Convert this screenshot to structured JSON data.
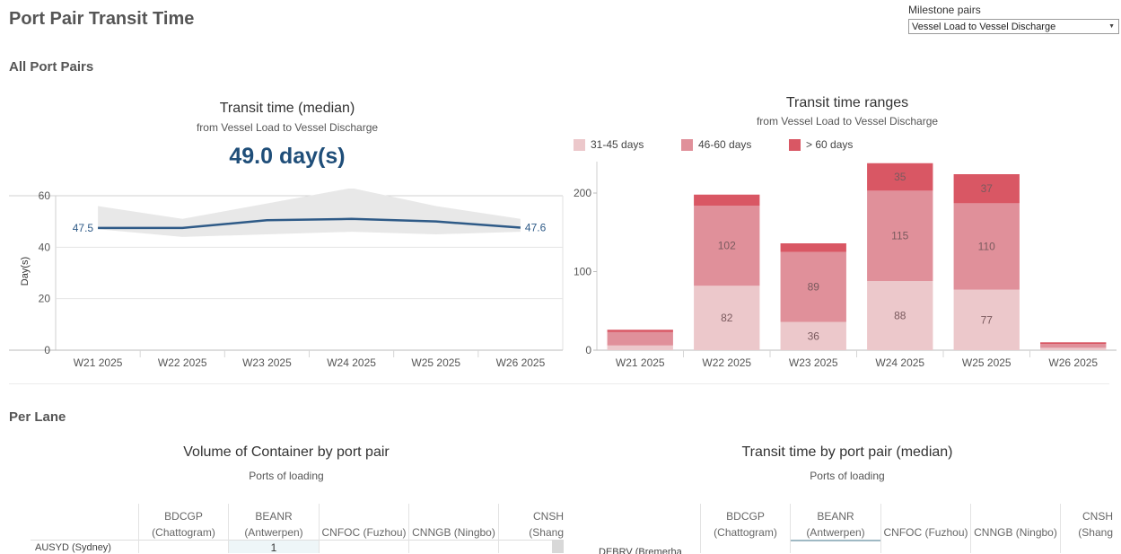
{
  "page": {
    "title": "Port Pair Transit Time",
    "milestone": {
      "label": "Milestone pairs",
      "selected": "Vessel Load to Vessel Discharge"
    }
  },
  "sections": {
    "all_port_pairs": "All Port Pairs",
    "per_lane": "Per Lane"
  },
  "kpi": {
    "title": "Transit time (median)",
    "subtitle": "from Vessel Load to Vessel Discharge",
    "value": "49.0 day(s)"
  },
  "ranges_header": {
    "title": "Transit time ranges",
    "subtitle": "from Vessel Load to Vessel Discharge"
  },
  "chart_data": [
    {
      "type": "line",
      "title": "",
      "xlabel": "",
      "ylabel": "Day(s)",
      "categories": [
        "W21 2025",
        "W22 2025",
        "W23 2025",
        "W24 2025",
        "W25 2025",
        "W26 2025"
      ],
      "series": [
        {
          "values": [
            47.5,
            47.5,
            50.5,
            51.0,
            50.0,
            47.6
          ]
        }
      ],
      "band": {
        "upper": [
          56,
          51,
          57,
          63,
          56,
          51
        ],
        "lower": [
          47,
          44,
          45,
          46,
          45,
          46
        ]
      },
      "point_labels": [
        {
          "index": 0,
          "text": "47.5"
        },
        {
          "index": 5,
          "text": "47.6"
        }
      ],
      "ylim": [
        0,
        60
      ],
      "yticks": [
        0,
        20,
        40,
        60
      ],
      "grid": true,
      "colors": {
        "line": "#2e5a87",
        "band": "#e8e8e8"
      }
    },
    {
      "type": "bar",
      "stacked": true,
      "title": "",
      "categories": [
        "W21 2025",
        "W22 2025",
        "W23 2025",
        "W24 2025",
        "W25 2025",
        "W26 2025"
      ],
      "series": [
        {
          "name": "31-45 days",
          "color": "#ecc8cb",
          "values": [
            6,
            82,
            36,
            88,
            77,
            3
          ]
        },
        {
          "name": "46-60 days",
          "color": "#e0909a",
          "values": [
            17,
            102,
            89,
            115,
            110,
            5
          ]
        },
        {
          "name": "> 60 days",
          "color": "#d95764",
          "values": [
            3,
            14,
            11,
            35,
            37,
            2
          ]
        }
      ],
      "data_labels": [
        {
          "category": "W22 2025",
          "series": "31-45 days",
          "text": "82"
        },
        {
          "category": "W22 2025",
          "series": "46-60 days",
          "text": "102"
        },
        {
          "category": "W23 2025",
          "series": "31-45 days",
          "text": "36"
        },
        {
          "category": "W23 2025",
          "series": "46-60 days",
          "text": "89"
        },
        {
          "category": "W24 2025",
          "series": "31-45 days",
          "text": "88"
        },
        {
          "category": "W24 2025",
          "series": "46-60 days",
          "text": "115"
        },
        {
          "category": "W24 2025",
          "series": "> 60 days",
          "text": "35"
        },
        {
          "category": "W25 2025",
          "series": "31-45 days",
          "text": "77"
        },
        {
          "category": "W25 2025",
          "series": "46-60 days",
          "text": "110"
        },
        {
          "category": "W25 2025",
          "series": "> 60 days",
          "text": "37"
        }
      ],
      "ylim": [
        0,
        240
      ],
      "yticks": [
        0,
        100,
        200
      ],
      "legend": "top-left"
    }
  ],
  "tables": {
    "volume": {
      "title": "Volume of Container by port pair",
      "subtitle": "Ports of loading",
      "columns": [
        {
          "code": "BDCGP",
          "name": "(Chattogram)"
        },
        {
          "code": "BEANR",
          "name": "(Antwerpen)"
        },
        {
          "code": "",
          "name": "CNFOC (Fuzhou)"
        },
        {
          "code": "",
          "name": "CNNGB (Ningbo)"
        },
        {
          "code": "CNSH",
          "name": "(Shang"
        }
      ],
      "rows": [
        {
          "label": "AUSYD (Sydney)",
          "cells": [
            "",
            "1",
            "",
            "",
            ""
          ]
        }
      ]
    },
    "transit": {
      "title": "Transit time by port pair (median)",
      "subtitle": "Ports of loading",
      "columns": [
        {
          "code": "BDCGP",
          "name": "(Chattogram)"
        },
        {
          "code": "BEANR",
          "name": "(Antwerpen)"
        },
        {
          "code": "",
          "name": "CNFOC (Fuzhou)"
        },
        {
          "code": "",
          "name": "CNNGB (Ningbo)"
        },
        {
          "code": "CNSH",
          "name": "(Shang"
        }
      ],
      "rows": [
        {
          "label": "DEBRV (Bremerha"
        }
      ]
    }
  }
}
